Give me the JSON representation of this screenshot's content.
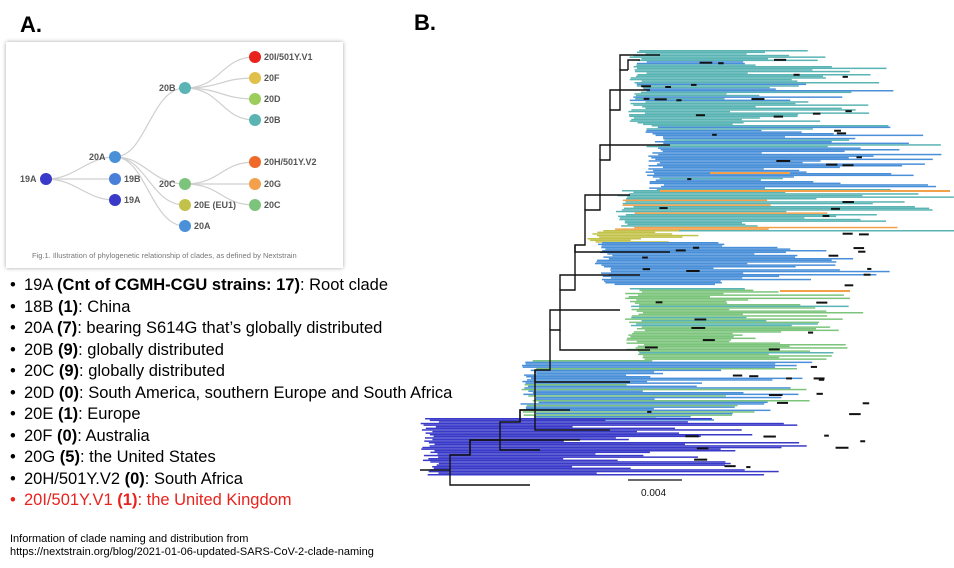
{
  "panels": {
    "a_label": "A.",
    "b_label": "B."
  },
  "figure": {
    "caption": "Fig.1. Illustration of phylogenetic relationship of clades, as defined by Nextstrain",
    "nodes": [
      {
        "id": "19A-root",
        "label": "19A",
        "color": "#3a3ac8"
      },
      {
        "id": "20A",
        "label": "20A",
        "color": "#4a90d9"
      },
      {
        "id": "19B",
        "label": "19B",
        "color": "#4a7fd9"
      },
      {
        "id": "19A",
        "label": "19A",
        "color": "#3a3ac8"
      },
      {
        "id": "20B",
        "label": "20B",
        "color": "#5ab4b4"
      },
      {
        "id": "20C",
        "label": "20C",
        "color": "#7cc47c"
      },
      {
        "id": "20E",
        "label": "20E (EU1)",
        "color": "#c2c24a"
      },
      {
        "id": "20A-leaf",
        "label": "20A",
        "color": "#4a90d9"
      },
      {
        "id": "20I",
        "label": "20I/501Y.V1",
        "color": "#e8221d"
      },
      {
        "id": "20F",
        "label": "20F",
        "color": "#e0c04a"
      },
      {
        "id": "20D",
        "label": "20D",
        "color": "#9ccc5a"
      },
      {
        "id": "20B-leaf",
        "label": "20B",
        "color": "#5ab4b4"
      },
      {
        "id": "20H",
        "label": "20H/501Y.V2",
        "color": "#ef6a2a"
      },
      {
        "id": "20G",
        "label": "20G",
        "color": "#f2a04a"
      },
      {
        "id": "20C-leaf",
        "label": "20C",
        "color": "#7cc47c"
      }
    ]
  },
  "clade_list": [
    {
      "pre": "19A ",
      "bold": "(Cnt of CGMH-CGU strains: 17)",
      "post": ": Root clade",
      "highlight": false
    },
    {
      "pre": "18B ",
      "bold": "(1)",
      "post": ": China",
      "highlight": false
    },
    {
      "pre": "20A ",
      "bold": "(7)",
      "post": ": bearing S614G that’s globally distributed",
      "highlight": false
    },
    {
      "pre": "20B ",
      "bold": "(9)",
      "post": ": globally distributed",
      "highlight": false
    },
    {
      "pre": "20C ",
      "bold": "(9)",
      "post": ": globally distributed",
      "highlight": false
    },
    {
      "pre": "20D ",
      "bold": "(0)",
      "post": ": South America, southern Europe and South Africa",
      "highlight": false
    },
    {
      "pre": "20E ",
      "bold": "(1)",
      "post": ": Europe",
      "highlight": false
    },
    {
      "pre": "20F ",
      "bold": "(0)",
      "post": ": Australia",
      "highlight": false
    },
    {
      "pre": "20G ",
      "bold": "(5)",
      "post": ": the United States",
      "highlight": false
    },
    {
      "pre": "20H/501Y.V2 ",
      "bold": "(0)",
      "post": ": South Africa",
      "highlight": false
    },
    {
      "pre": "20I/501Y.V1 ",
      "bold": "(1)",
      "post": ": the United Kingdom",
      "highlight": true
    }
  ],
  "bullet": "•",
  "footnote": {
    "line1": "Information of clade naming and distribution from",
    "line2": "https://nextstrain.org/blog/2021-01-06-updated-SARS-CoV-2-clade-naming"
  },
  "tree": {
    "scale_label": "0.004",
    "bands": [
      {
        "color": "#5ab4b4"
      },
      {
        "color": "#4a90d9"
      },
      {
        "color": "#7cc47c"
      },
      {
        "color": "#c2c24a"
      },
      {
        "color": "#f2a04a"
      },
      {
        "color": "#3a3ac8"
      },
      {
        "color": "#e8221d"
      }
    ]
  }
}
